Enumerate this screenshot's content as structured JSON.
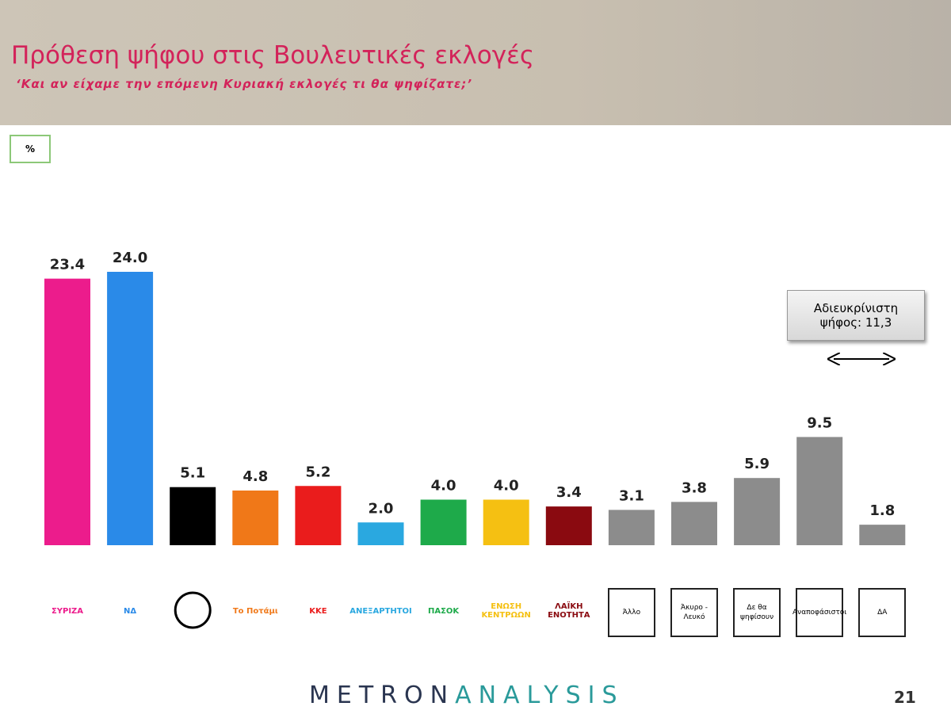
{
  "chart_data": {
    "type": "bar",
    "title": "Πρόθεση ψήφου στις Βουλευτικές εκλογές",
    "subtitle": "‘Και αν είχαμε την επόμενη Κυριακή εκλογές τι θα ψηφίζατε;’",
    "unit": "%",
    "categories": [
      "ΣΥΡΙΖΑ",
      "ΝΔ",
      null,
      "Το Ποτάμι",
      "ΚΚΕ",
      "ΑΝΕΞΑΡΤΗΤΟΙ",
      "ΠΑΣΟΚ",
      "ΕΝΩΣΗ ΚΕΝΤΡΩΩΝ",
      "ΛΑΪΚΗ ΕΝΟΤΗΤΑ",
      "Άλλο",
      "Άκυρο - Λευκό",
      "Δε θα ψηφίσουν",
      "Αναποφάσιστοι",
      "ΔΑ"
    ],
    "values": [
      23.4,
      24.0,
      5.1,
      4.8,
      5.2,
      2.0,
      4.0,
      4.0,
      3.4,
      3.1,
      3.8,
      5.9,
      9.5,
      1.8
    ],
    "value_labels": [
      "23.4",
      "24.0",
      "5.1",
      "4.8",
      "5.2",
      "2.0",
      "4.0",
      "4.0",
      "3.4",
      "3.1",
      "3.8",
      "5.9",
      "9.5",
      "1.8"
    ],
    "colors": [
      "#ec1c8c",
      "#2a8ae8",
      "#000000",
      "#f07818",
      "#ea1c1c",
      "#2aa8e0",
      "#1eaa4a",
      "#f5c012",
      "#8a0a10",
      "#8c8c8c",
      "#8c8c8c",
      "#8c8c8c",
      "#8c8c8c",
      "#8c8c8c"
    ],
    "annotation": [
      "Αδιευκρίνιστη",
      "ψήφος: 11,3"
    ],
    "brand": [
      "METRON",
      "ANALYSIS"
    ],
    "page_number": "21"
  }
}
